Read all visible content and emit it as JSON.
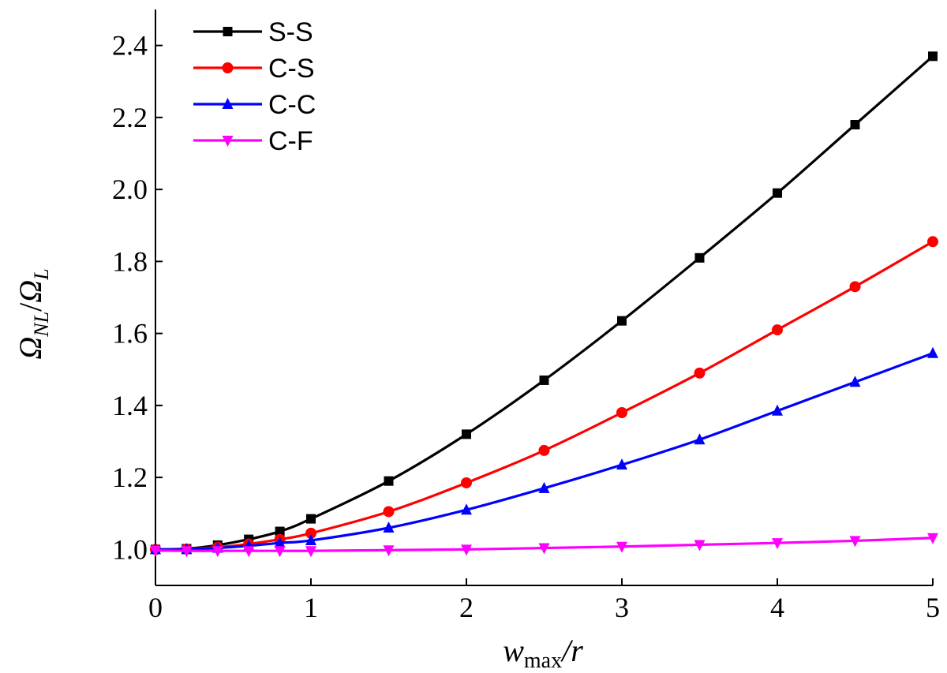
{
  "chart_data": {
    "type": "line",
    "title": "",
    "xlabel": {
      "main": "w",
      "sub": "max",
      "rest": "/r"
    },
    "ylabel": {
      "main1": "Ω",
      "sub1": "NL",
      "slash": "/",
      "main2": "Ω",
      "sub2": "L"
    },
    "xlim": [
      0,
      5
    ],
    "ylim": [
      0.9,
      2.5
    ],
    "xticks": [
      0,
      1,
      2,
      3,
      4,
      5
    ],
    "xtick_labels": [
      "0",
      "1",
      "2",
      "3",
      "4",
      "5"
    ],
    "yticks": [
      1.0,
      1.2,
      1.4,
      1.6,
      1.8,
      2.0,
      2.2,
      2.4
    ],
    "ytick_labels": [
      "1.0",
      "1.2",
      "1.4",
      "1.6",
      "1.8",
      "2.0",
      "2.2",
      "2.4"
    ],
    "grid": false,
    "legend_position": "top-left",
    "x": [
      0,
      0.2,
      0.4,
      0.6,
      0.8,
      1.0,
      1.5,
      2.0,
      2.5,
      3.0,
      3.5,
      4.0,
      4.5,
      5.0
    ],
    "series": [
      {
        "name": "S-S",
        "color": "#000000",
        "marker": "square",
        "values": [
          1.0,
          1.002,
          1.012,
          1.028,
          1.05,
          1.085,
          1.19,
          1.32,
          1.47,
          1.635,
          1.81,
          1.99,
          2.18,
          2.37
        ]
      },
      {
        "name": "C-S",
        "color": "#ff0000",
        "marker": "circle",
        "values": [
          1.0,
          1.001,
          1.006,
          1.015,
          1.028,
          1.045,
          1.105,
          1.185,
          1.275,
          1.38,
          1.49,
          1.61,
          1.73,
          1.855
        ]
      },
      {
        "name": "C-C",
        "color": "#0000ff",
        "marker": "triangle-up",
        "values": [
          1.0,
          1.0,
          1.004,
          1.01,
          1.018,
          1.025,
          1.06,
          1.11,
          1.17,
          1.235,
          1.305,
          1.385,
          1.465,
          1.545
        ]
      },
      {
        "name": "C-F",
        "color": "#ff00ff",
        "marker": "triangle-down",
        "values": [
          0.997,
          0.996,
          0.996,
          0.996,
          0.996,
          0.996,
          0.998,
          1.0,
          1.004,
          1.008,
          1.013,
          1.018,
          1.024,
          1.032
        ]
      }
    ]
  }
}
